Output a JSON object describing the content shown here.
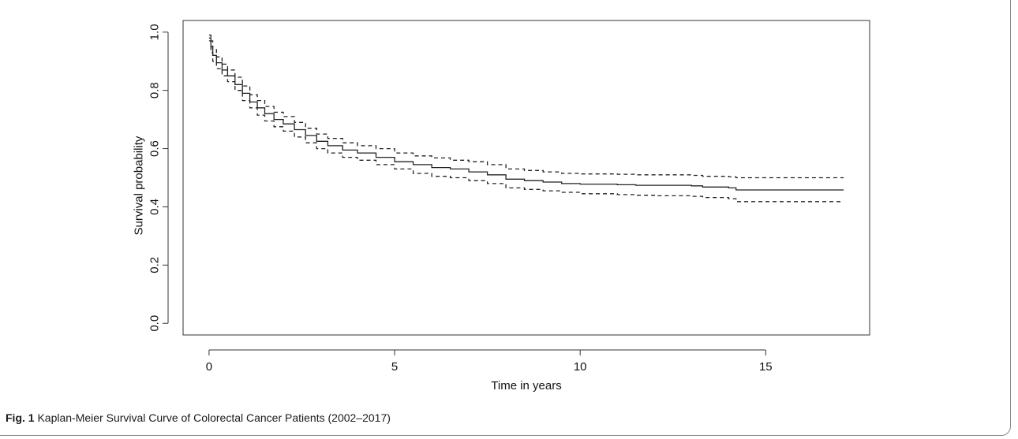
{
  "caption": {
    "label": "Fig. 1",
    "text": "Kaplan-Meier Survival Curve of Colorectal Cancer Patients (2002–2017)"
  },
  "chart_data": {
    "type": "line",
    "title": "",
    "xlabel": "Time in years",
    "ylabel": "Survival probability",
    "xlim": [
      -0.7,
      17.8
    ],
    "ylim": [
      -0.04,
      1.04
    ],
    "xticks": [
      0,
      5,
      10,
      15
    ],
    "yticks": [
      0.0,
      0.2,
      0.4,
      0.6,
      0.8,
      1.0
    ],
    "xtick_labels": [
      "0",
      "5",
      "10",
      "15"
    ],
    "ytick_labels": [
      "0.0",
      "0.2",
      "0.4",
      "0.6",
      "0.8",
      "1.0"
    ],
    "grid": false,
    "step": true,
    "series": [
      {
        "role": "estimate",
        "line_style": "solid",
        "color": "#222222",
        "x": [
          0,
          0.05,
          0.1,
          0.2,
          0.35,
          0.5,
          0.7,
          0.9,
          1.1,
          1.3,
          1.5,
          1.75,
          2.0,
          2.3,
          2.6,
          2.9,
          3.2,
          3.6,
          4.0,
          4.5,
          5.0,
          5.5,
          6.0,
          6.5,
          7.0,
          7.5,
          8.0,
          8.5,
          9.0,
          9.5,
          10.0,
          11.0,
          11.5,
          12.0,
          13.0,
          13.3,
          14.0,
          14.2,
          17.1
        ],
        "y": [
          0.98,
          0.95,
          0.92,
          0.895,
          0.87,
          0.85,
          0.82,
          0.79,
          0.76,
          0.74,
          0.72,
          0.7,
          0.685,
          0.665,
          0.645,
          0.625,
          0.61,
          0.595,
          0.585,
          0.57,
          0.555,
          0.545,
          0.535,
          0.53,
          0.52,
          0.51,
          0.495,
          0.49,
          0.485,
          0.48,
          0.478,
          0.476,
          0.474,
          0.474,
          0.472,
          0.468,
          0.465,
          0.458,
          0.458
        ]
      },
      {
        "role": "upper confidence limit",
        "line_style": "dashed",
        "color": "#222222",
        "x": [
          0,
          0.05,
          0.1,
          0.2,
          0.35,
          0.5,
          0.7,
          0.9,
          1.1,
          1.3,
          1.5,
          1.75,
          2.0,
          2.3,
          2.6,
          2.9,
          3.2,
          3.6,
          4.0,
          4.5,
          5.0,
          5.5,
          6.0,
          6.5,
          7.0,
          7.5,
          8.0,
          8.5,
          9.0,
          9.5,
          10.0,
          11.0,
          11.5,
          12.0,
          13.0,
          13.3,
          14.0,
          14.2,
          17.1
        ],
        "y": [
          0.99,
          0.97,
          0.94,
          0.915,
          0.89,
          0.87,
          0.845,
          0.815,
          0.785,
          0.765,
          0.745,
          0.725,
          0.71,
          0.69,
          0.67,
          0.65,
          0.635,
          0.62,
          0.61,
          0.6,
          0.585,
          0.575,
          0.568,
          0.56,
          0.555,
          0.545,
          0.53,
          0.525,
          0.52,
          0.515,
          0.513,
          0.512,
          0.51,
          0.51,
          0.508,
          0.505,
          0.503,
          0.5,
          0.5
        ]
      },
      {
        "role": "lower confidence limit",
        "line_style": "dashed",
        "color": "#222222",
        "x": [
          0,
          0.05,
          0.1,
          0.2,
          0.35,
          0.5,
          0.7,
          0.9,
          1.1,
          1.3,
          1.5,
          1.75,
          2.0,
          2.3,
          2.6,
          2.9,
          3.2,
          3.6,
          4.0,
          4.5,
          5.0,
          5.5,
          6.0,
          6.5,
          7.0,
          7.5,
          8.0,
          8.5,
          9.0,
          9.5,
          10.0,
          11.0,
          11.5,
          12.0,
          13.0,
          13.3,
          14.0,
          14.2,
          17.1
        ],
        "y": [
          0.97,
          0.93,
          0.9,
          0.875,
          0.85,
          0.83,
          0.8,
          0.765,
          0.74,
          0.715,
          0.695,
          0.675,
          0.66,
          0.64,
          0.62,
          0.6,
          0.585,
          0.57,
          0.56,
          0.545,
          0.53,
          0.515,
          0.505,
          0.5,
          0.49,
          0.48,
          0.465,
          0.46,
          0.455,
          0.45,
          0.445,
          0.442,
          0.44,
          0.438,
          0.436,
          0.432,
          0.428,
          0.418,
          0.418
        ]
      }
    ]
  }
}
